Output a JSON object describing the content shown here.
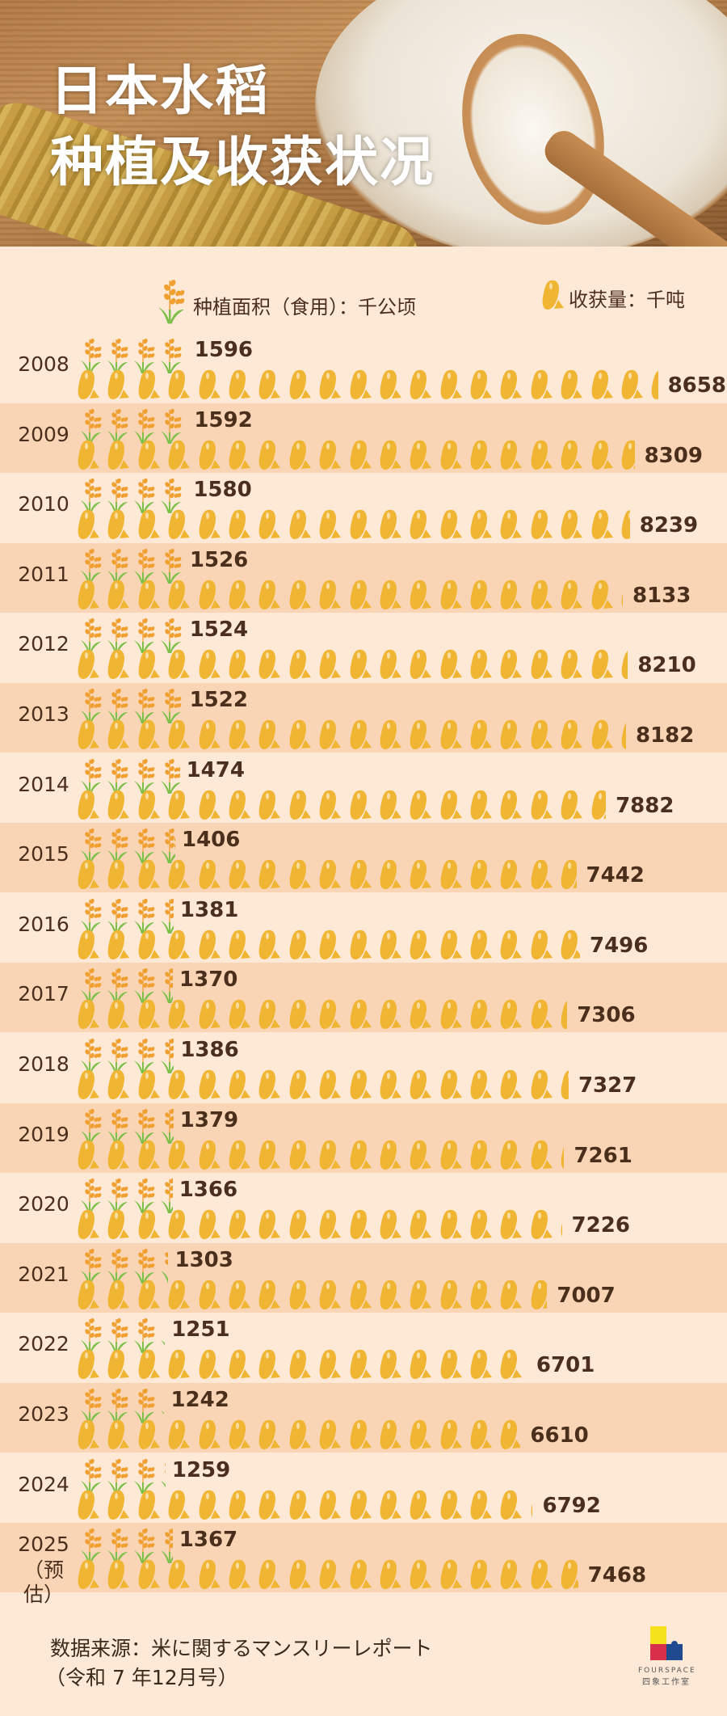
{
  "title": {
    "line1": "日本水稻",
    "line2": "种植及收获状况"
  },
  "legend": {
    "area": {
      "icon": "rice-plant-icon",
      "label": "种植面积（食用）：千公顷"
    },
    "harvest": {
      "icon": "rice-grain-icon",
      "label": "收获量：千吨"
    }
  },
  "colors": {
    "background": "#fde9d6",
    "row_alt": "#fad5b5",
    "grain": "#f0b532",
    "leaf": "#7cc04a",
    "ear": "#f0a030",
    "text": "#4a2f1c"
  },
  "chart_data": {
    "type": "pictograph",
    "series": [
      {
        "name": "种植面积（食用）：千公顷",
        "icon": "rice-plant-icon"
      },
      {
        "name": "收获量：千吨",
        "icon": "rice-grain-icon"
      }
    ],
    "rows": [
      {
        "year": "2008",
        "area": 1596,
        "harvest": 8658
      },
      {
        "year": "2009",
        "area": 1592,
        "harvest": 8309
      },
      {
        "year": "2010",
        "area": 1580,
        "harvest": 8239
      },
      {
        "year": "2011",
        "area": 1526,
        "harvest": 8133
      },
      {
        "year": "2012",
        "area": 1524,
        "harvest": 8210
      },
      {
        "year": "2013",
        "area": 1522,
        "harvest": 8182
      },
      {
        "year": "2014",
        "area": 1474,
        "harvest": 7882
      },
      {
        "year": "2015",
        "area": 1406,
        "harvest": 7442
      },
      {
        "year": "2016",
        "area": 1381,
        "harvest": 7496
      },
      {
        "year": "2017",
        "area": 1370,
        "harvest": 7306
      },
      {
        "year": "2018",
        "area": 1386,
        "harvest": 7327
      },
      {
        "year": "2019",
        "area": 1379,
        "harvest": 7261
      },
      {
        "year": "2020",
        "area": 1366,
        "harvest": 7226
      },
      {
        "year": "2021",
        "area": 1303,
        "harvest": 7007
      },
      {
        "year": "2022",
        "area": 1251,
        "harvest": 6701
      },
      {
        "year": "2023",
        "area": 1242,
        "harvest": 6610
      },
      {
        "year": "2024",
        "area": 1259,
        "harvest": 6792
      },
      {
        "year": "2025",
        "note": "（预估）",
        "area": 1367,
        "harvest": 7468
      }
    ]
  },
  "footer": {
    "source_line1": "数据来源：米に関するマンスリーレポート",
    "source_line2": "（令和 7 年12月号）"
  },
  "logo": {
    "name_en": "FOURSPACE",
    "name_zh": "四象工作室"
  }
}
